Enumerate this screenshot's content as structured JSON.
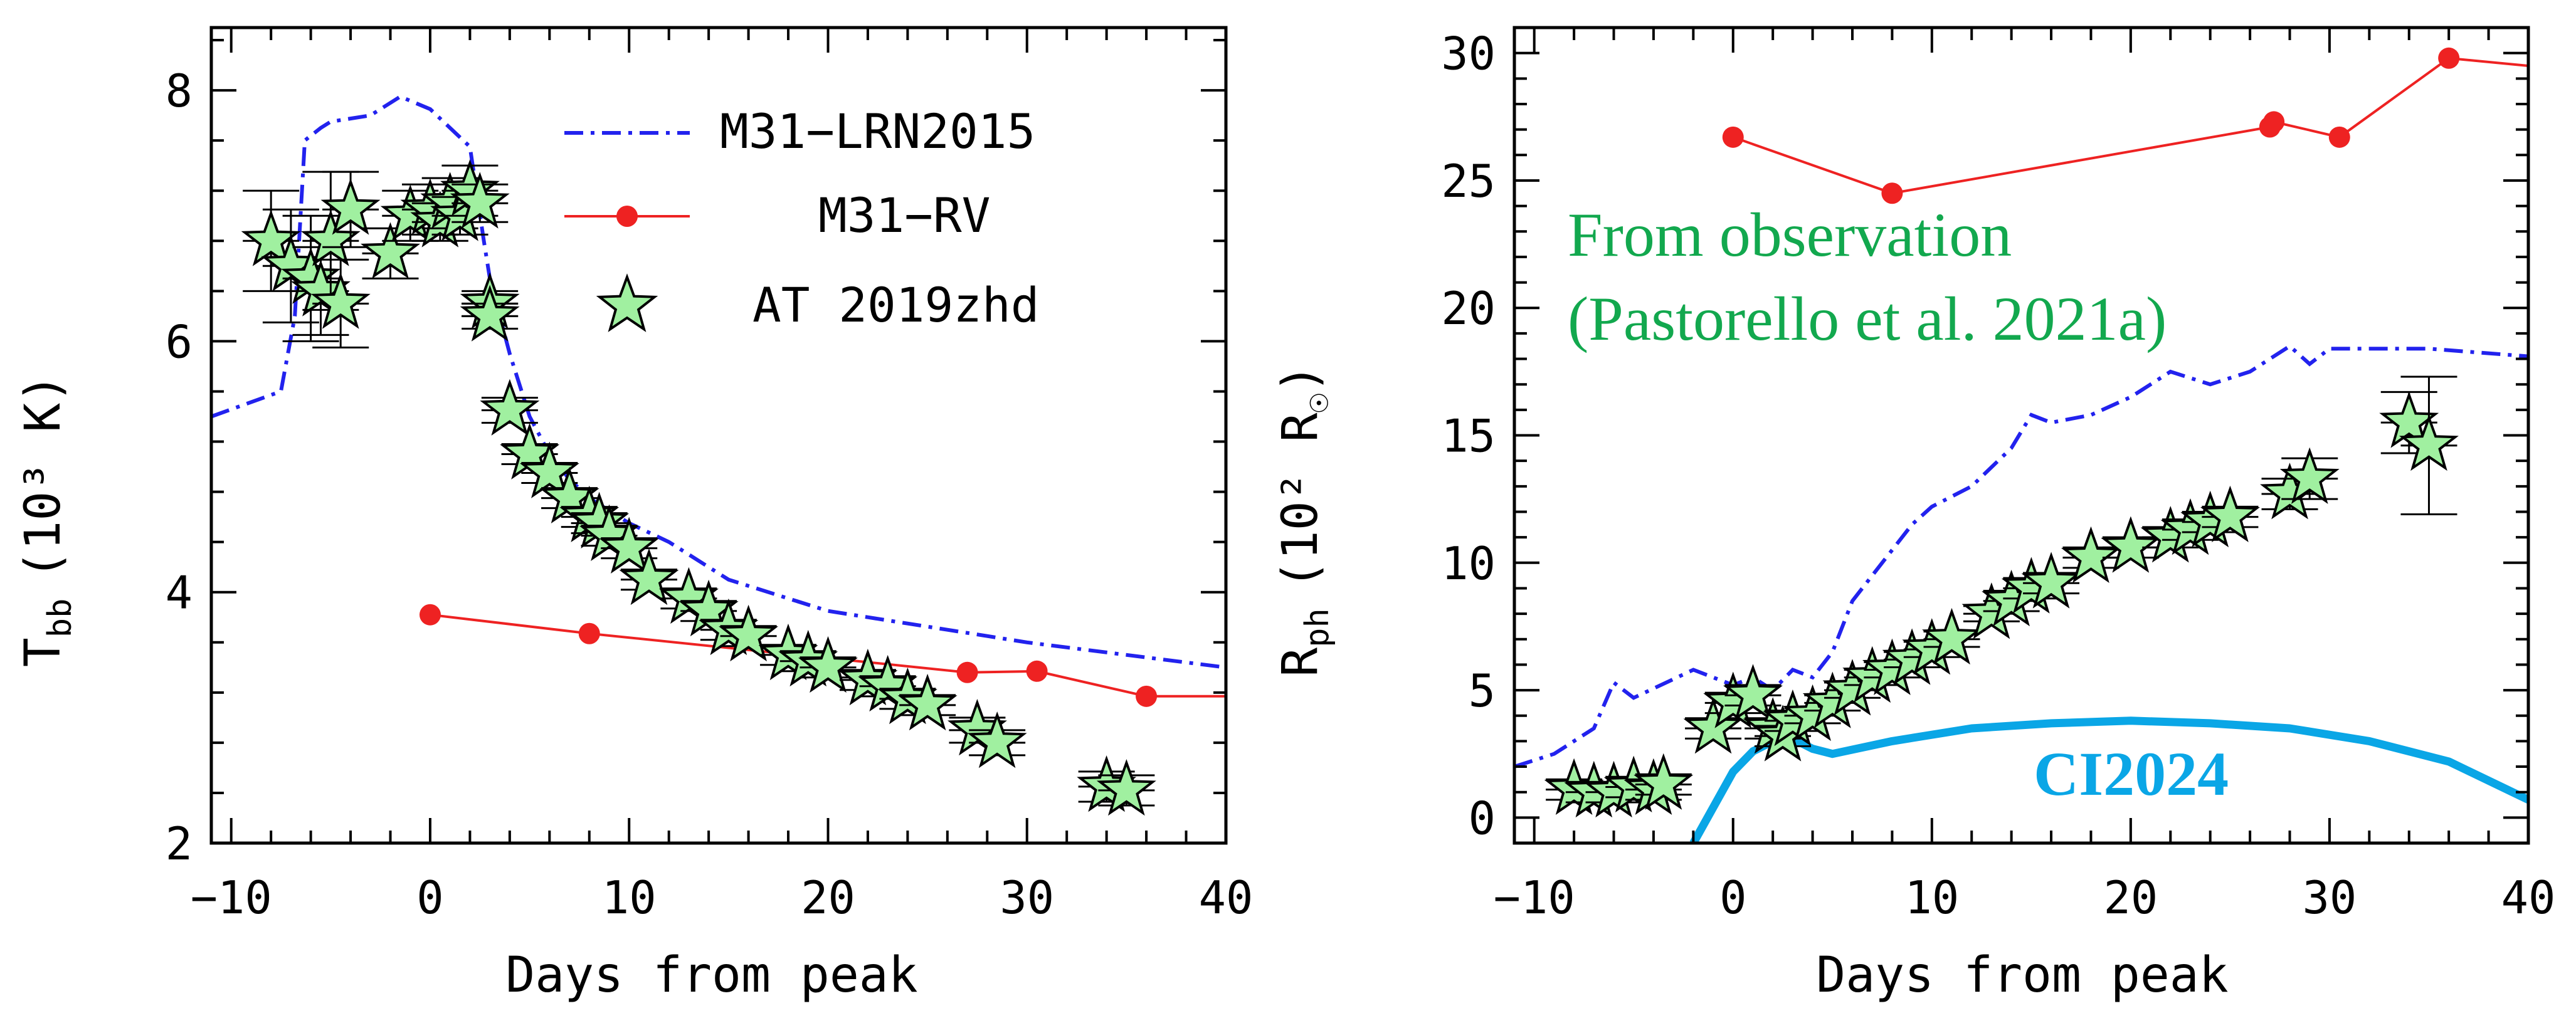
{
  "chart_data": [
    {
      "id": "left",
      "type": "line",
      "xlabel": "Days from peak",
      "ylabel": "T",
      "ylabel_sub": "bb",
      "ylabel_unit": "(10³ K)",
      "xlim": [
        -11,
        40
      ],
      "ylim": [
        2,
        8.5
      ],
      "xticks": [
        -10,
        0,
        10,
        20,
        30,
        40
      ],
      "xtick_labels": [
        "−10",
        "0",
        "10",
        "20",
        "30",
        "40"
      ],
      "yticks": [
        2,
        4,
        6,
        8
      ],
      "ytick_labels": [
        "2",
        "4",
        "6",
        "8"
      ],
      "legend_position": "top-right",
      "legend": [
        "M31−LRN2015",
        "M31−RV",
        "AT 2019zhd"
      ],
      "series": [
        {
          "name": "M31−LRN2015",
          "style": "dashdot",
          "color": "#2222ee",
          "x": [
            -11,
            -7.5,
            -6.8,
            -6.3,
            -5.5,
            -5,
            -3,
            -1.5,
            0,
            1,
            2,
            2.7,
            3,
            3.5,
            4,
            5,
            6,
            7,
            8,
            10,
            12,
            14,
            15,
            16,
            18,
            20,
            22,
            24,
            26,
            28,
            30,
            35,
            40
          ],
          "y": [
            5.4,
            5.6,
            6.2,
            7.6,
            7.7,
            7.75,
            7.8,
            7.95,
            7.85,
            7.7,
            7.55,
            6.8,
            6.5,
            6.2,
            5.9,
            5.4,
            5.1,
            4.9,
            4.75,
            4.55,
            4.4,
            4.2,
            4.1,
            4.05,
            3.95,
            3.85,
            3.8,
            3.75,
            3.7,
            3.65,
            3.6,
            3.5,
            3.4
          ]
        },
        {
          "name": "M31−RV",
          "style": "line-marker",
          "color": "#ee2222",
          "x": [
            0,
            8,
            27,
            30.5,
            36,
            40
          ],
          "y": [
            3.82,
            3.67,
            3.36,
            3.37,
            3.17,
            3.17
          ],
          "marker_count": 5
        },
        {
          "name": "AT 2019zhd",
          "style": "stars",
          "color": "#a0f0a0",
          "x": [
            -8,
            -7,
            -6,
            -5.5,
            -5,
            -4.5,
            -4,
            -2,
            -1,
            0,
            0.5,
            1,
            1.5,
            2,
            2.5,
            3,
            3,
            4,
            5,
            6,
            7,
            8,
            8.5,
            9,
            10,
            11,
            13,
            14,
            15,
            16,
            18,
            19,
            20,
            22,
            23,
            24,
            25,
            27.5,
            28.5,
            34,
            35
          ],
          "y": [
            6.8,
            6.6,
            6.5,
            6.4,
            6.8,
            6.3,
            7.05,
            6.7,
            7.0,
            7.05,
            6.95,
            7.1,
            7.0,
            7.2,
            7.1,
            6.3,
            6.2,
            5.45,
            5.1,
            4.95,
            4.75,
            4.6,
            4.55,
            4.45,
            4.35,
            4.1,
            3.95,
            3.85,
            3.7,
            3.65,
            3.5,
            3.45,
            3.4,
            3.3,
            3.25,
            3.15,
            3.1,
            2.9,
            2.8,
            2.45,
            2.42
          ],
          "yerr": [
            0.4,
            0.45,
            0.5,
            0.35,
            0.55,
            0.35,
            0.3,
            0.2,
            0.2,
            0.2,
            0.15,
            0.2,
            0.15,
            0.2,
            0.15,
            0.1,
            0.1,
            0.1,
            0.08,
            0.08,
            0.08,
            0.08,
            0.08,
            0.08,
            0.08,
            0.08,
            0.08,
            0.08,
            0.08,
            0.08,
            0.08,
            0.08,
            0.08,
            0.08,
            0.08,
            0.08,
            0.08,
            0.1,
            0.1,
            0.12,
            0.12
          ]
        }
      ]
    },
    {
      "id": "right",
      "type": "line",
      "xlabel": "Days from peak",
      "ylabel": "R",
      "ylabel_sub": "ph",
      "ylabel_unit": "(10² R",
      "ylabel_unit_end": ")",
      "xlim": [
        -11,
        40
      ],
      "ylim": [
        -1,
        31
      ],
      "xticks": [
        -10,
        0,
        10,
        20,
        30,
        40
      ],
      "xtick_labels": [
        "−10",
        "0",
        "10",
        "20",
        "30",
        "40"
      ],
      "yticks": [
        0,
        5,
        10,
        15,
        20,
        25,
        30
      ],
      "ytick_labels": [
        "0",
        "5",
        "10",
        "15",
        "20",
        "25",
        "30"
      ],
      "annotations": [
        {
          "text": "From observation",
          "color": "#12a84e"
        },
        {
          "text": "(Pastorello et al. 2021a)",
          "color": "#12a84e"
        },
        {
          "text": "CI2024",
          "color": "#0aa6e6"
        }
      ],
      "series": [
        {
          "name": "M31−LRN2015",
          "style": "dashdot",
          "color": "#2222ee",
          "x": [
            -11,
            -9,
            -7,
            -6,
            -5,
            -2,
            0,
            1,
            2,
            3,
            4,
            5,
            6,
            7,
            8,
            9,
            10,
            12,
            14,
            15,
            16,
            18,
            20,
            22,
            24,
            26,
            28,
            29,
            30,
            35,
            40
          ],
          "y": [
            2,
            2.5,
            3.5,
            5.3,
            4.7,
            5.8,
            5.2,
            5.5,
            5.0,
            5.8,
            5.5,
            6.5,
            8.5,
            9.5,
            10.5,
            11.5,
            12.2,
            13.0,
            14.5,
            15.8,
            15.5,
            15.8,
            16.5,
            17.5,
            17.0,
            17.5,
            18.5,
            17.8,
            18.4,
            18.4,
            18.1
          ]
        },
        {
          "name": "M31−RV",
          "style": "line-marker",
          "color": "#ee2222",
          "x": [
            0,
            8,
            27,
            27.2,
            30.5,
            36,
            40
          ],
          "y": [
            26.7,
            24.5,
            27.1,
            27.3,
            26.7,
            29.8,
            29.5
          ],
          "marker_count": 6
        },
        {
          "name": "CI2024",
          "style": "thick",
          "color": "#0aa6e6",
          "x": [
            -2,
            0,
            1,
            2,
            3,
            4,
            5,
            8,
            12,
            16,
            20,
            24,
            28,
            32,
            36,
            40
          ],
          "y": [
            -1,
            1.8,
            2.6,
            3.0,
            3.1,
            2.7,
            2.5,
            3.0,
            3.5,
            3.7,
            3.8,
            3.7,
            3.5,
            3.0,
            2.2,
            0.7
          ]
        },
        {
          "name": "AT 2019zhd",
          "style": "stars",
          "color": "#a0f0a0",
          "x": [
            -8,
            -7,
            -6,
            -5,
            -4,
            -3.5,
            -1,
            0,
            1,
            2,
            2.5,
            3,
            4,
            5,
            6,
            7,
            8,
            9,
            10,
            11,
            13,
            14,
            15,
            16,
            18,
            20,
            22,
            23,
            24,
            25,
            28,
            29,
            34,
            35
          ],
          "y": [
            1.1,
            1.0,
            1.0,
            1.2,
            1.1,
            1.3,
            3.5,
            4.5,
            4.8,
            3.5,
            3.2,
            3.8,
            4.0,
            4.5,
            5.0,
            5.5,
            5.8,
            6.2,
            6.6,
            7.0,
            8.0,
            8.5,
            9.0,
            9.2,
            10.2,
            10.6,
            11.0,
            11.3,
            11.6,
            11.8,
            12.7,
            13.3,
            15.5,
            14.6
          ],
          "yerr": [
            0.4,
            0.4,
            0.4,
            0.4,
            0.4,
            0.4,
            0.4,
            0.4,
            0.4,
            0.4,
            0.4,
            0.4,
            0.3,
            0.3,
            0.3,
            0.3,
            0.3,
            0.3,
            0.3,
            0.3,
            0.3,
            0.4,
            0.4,
            0.4,
            0.4,
            0.4,
            0.4,
            0.4,
            0.4,
            0.4,
            0.6,
            0.8,
            1.2,
            2.7
          ]
        }
      ]
    }
  ]
}
